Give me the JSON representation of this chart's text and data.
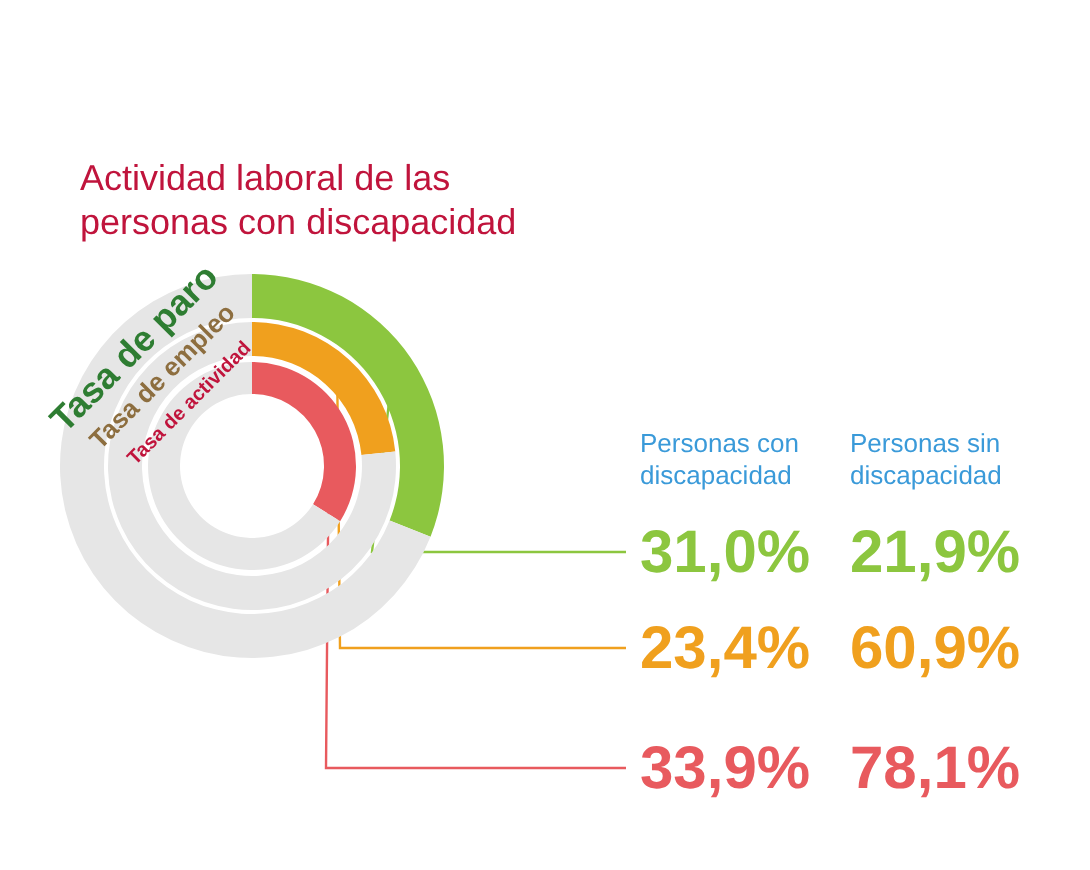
{
  "chart_data": [
    {
      "type": "donut",
      "title": "Tasa de paro",
      "categories": [
        null,
        null
      ],
      "values": [
        31.0,
        69.0
      ],
      "colors": [
        "#8cc63f",
        "#e6e6e6"
      ],
      "value_labels": [
        "31,0%",
        null
      ]
    },
    {
      "type": "donut",
      "title": "Tasa de empleo",
      "categories": [
        null,
        null
      ],
      "values": [
        23.4,
        76.6
      ],
      "colors": [
        "#f0a01e",
        "#e6e6e6"
      ],
      "value_labels": [
        "23,4%",
        null
      ]
    },
    {
      "type": "donut",
      "title": "Tasa de actividad",
      "categories": [
        null,
        null
      ],
      "values": [
        33.9,
        66.1
      ],
      "colors": [
        "#e85a5e",
        "#e6e6e6"
      ],
      "value_labels": [
        "33,9%",
        null
      ]
    },
    {
      "type": "other",
      "title": "Actividad laboral de las personas con discapacidad",
      "annotations": [
        "Personas con discapacidad",
        "Personas sin discapacidad",
        "21,9%",
        "60,9%",
        "78,1%"
      ]
    }
  ]
}
